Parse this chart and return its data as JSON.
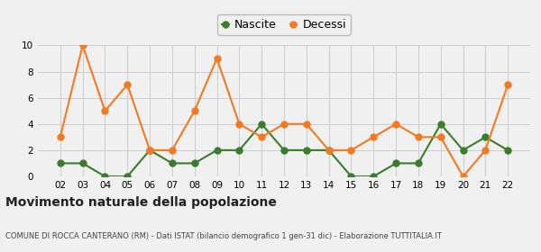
{
  "years": [
    "02",
    "03",
    "04",
    "05",
    "06",
    "07",
    "08",
    "09",
    "10",
    "11",
    "12",
    "13",
    "14",
    "15",
    "16",
    "17",
    "18",
    "19",
    "20",
    "21",
    "22"
  ],
  "nascite": [
    1,
    1,
    0,
    0,
    2,
    1,
    1,
    2,
    2,
    4,
    2,
    2,
    2,
    0,
    0,
    1,
    1,
    4,
    2,
    3,
    2
  ],
  "decessi": [
    3,
    10,
    5,
    7,
    2,
    2,
    5,
    9,
    4,
    3,
    4,
    4,
    2,
    2,
    3,
    4,
    3,
    3,
    0,
    2,
    7
  ],
  "nascite_color": "#3a7d2c",
  "decessi_color": "#f47920",
  "title": "Movimento naturale della popolazione",
  "subtitle": "COMUNE DI ROCCA CANTERANO (RM) - Dati ISTAT (bilancio demografico 1 gen-31 dic) - Elaborazione TUTTITALIA.IT",
  "legend_nascite": "Nascite",
  "legend_decessi": "Decessi",
  "ylim": [
    0,
    10
  ],
  "yticks": [
    0,
    2,
    4,
    6,
    8,
    10
  ],
  "background_color": "#f0f0f0",
  "grid_color": "#cccccc",
  "marker_size": 5,
  "line_width": 1.5
}
